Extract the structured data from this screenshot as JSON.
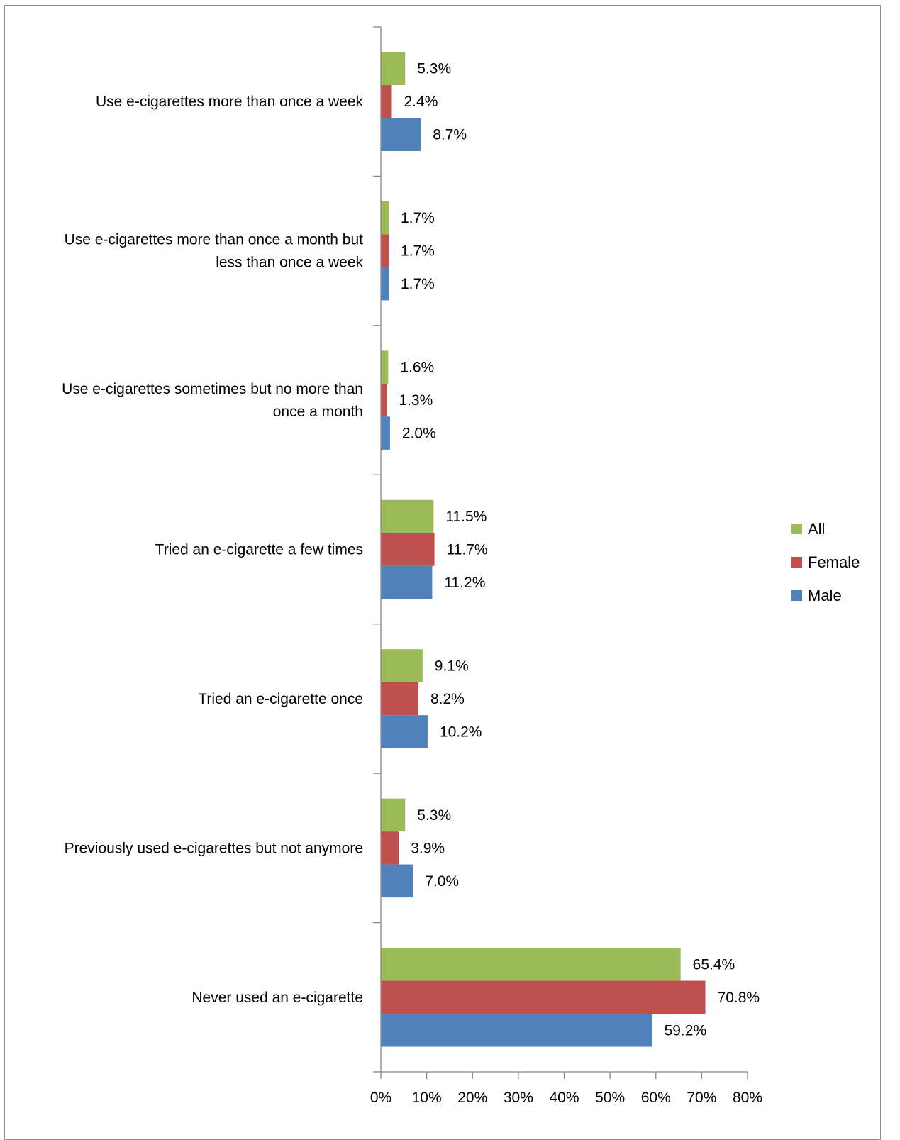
{
  "chart_data": {
    "type": "bar",
    "orientation": "horizontal",
    "categories": [
      "Use e-cigarettes more than once a week",
      "Use e-cigarettes more than once a month but less than once a week",
      "Use e-cigarettes sometimes but no more than once a month",
      "Tried an e-cigarette a few times",
      "Tried an e-cigarette once",
      "Previously used e-cigarettes but not anymore",
      "Never used an e-cigarette"
    ],
    "category_lines": [
      [
        "Use e-cigarettes more than once a week"
      ],
      [
        "Use e-cigarettes more than once a month but",
        "less than once a week"
      ],
      [
        "Use e-cigarettes sometimes but no more than",
        "once a month"
      ],
      [
        "Tried an e-cigarette a few times"
      ],
      [
        "Tried an e-cigarette once"
      ],
      [
        "Previously used e-cigarettes but not anymore"
      ],
      [
        "Never used an e-cigarette"
      ]
    ],
    "series": [
      {
        "name": "All",
        "color": "#9bbb59",
        "values": [
          5.3,
          1.7,
          1.6,
          11.5,
          9.1,
          5.3,
          65.4
        ],
        "labels": [
          "5.3%",
          "1.7%",
          "1.6%",
          "11.5%",
          "9.1%",
          "5.3%",
          "65.4%"
        ]
      },
      {
        "name": "Female",
        "color": "#c0504d",
        "values": [
          2.4,
          1.7,
          1.3,
          11.7,
          8.2,
          3.9,
          70.8
        ],
        "labels": [
          "2.4%",
          "1.7%",
          "1.3%",
          "11.7%",
          "8.2%",
          "3.9%",
          "70.8%"
        ]
      },
      {
        "name": "Male",
        "color": "#4f81bd",
        "values": [
          8.7,
          1.7,
          2.0,
          11.2,
          10.2,
          7.0,
          59.2
        ],
        "labels": [
          "8.7%",
          "1.7%",
          "2.0%",
          "11.2%",
          "10.2%",
          "7.0%",
          "59.2%"
        ]
      }
    ],
    "x_ticks": [
      "0%",
      "10%",
      "20%",
      "30%",
      "40%",
      "50%",
      "60%",
      "70%",
      "80%"
    ],
    "xlim": [
      0,
      80
    ],
    "legend": [
      "All",
      "Female",
      "Male"
    ],
    "legend_position": "right",
    "grid": false
  }
}
